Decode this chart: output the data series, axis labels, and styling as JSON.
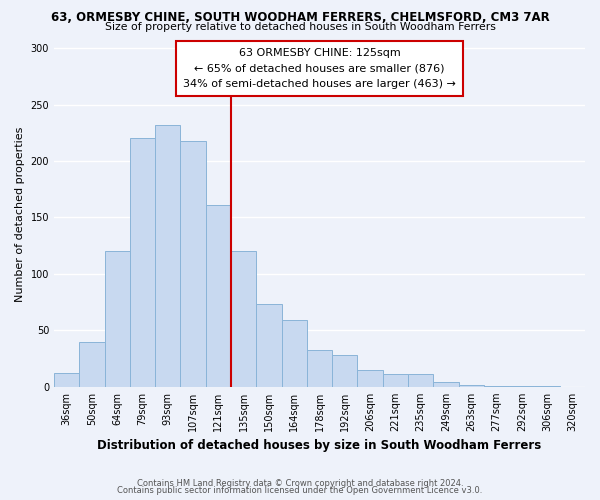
{
  "title1": "63, ORMESBY CHINE, SOUTH WOODHAM FERRERS, CHELMSFORD, CM3 7AR",
  "title2": "Size of property relative to detached houses in South Woodham Ferrers",
  "xlabel": "Distribution of detached houses by size in South Woodham Ferrers",
  "ylabel": "Number of detached properties",
  "categories": [
    "36sqm",
    "50sqm",
    "64sqm",
    "79sqm",
    "93sqm",
    "107sqm",
    "121sqm",
    "135sqm",
    "150sqm",
    "164sqm",
    "178sqm",
    "192sqm",
    "206sqm",
    "221sqm",
    "235sqm",
    "249sqm",
    "263sqm",
    "277sqm",
    "292sqm",
    "306sqm",
    "320sqm"
  ],
  "values": [
    12,
    40,
    120,
    220,
    232,
    218,
    161,
    120,
    73,
    59,
    33,
    28,
    15,
    11,
    11,
    4,
    2,
    1,
    1,
    1,
    0
  ],
  "bar_color": "#c8d9f0",
  "bar_edge_color": "#8ab4d8",
  "vline_color": "#cc0000",
  "annotation_title": "63 ORMESBY CHINE: 125sqm",
  "annotation_line1": "← 65% of detached houses are smaller (876)",
  "annotation_line2": "34% of semi-detached houses are larger (463) →",
  "annotation_box_color": "#ffffff",
  "annotation_box_edge": "#cc0000",
  "ylim": [
    0,
    305
  ],
  "yticks": [
    0,
    50,
    100,
    150,
    200,
    250,
    300
  ],
  "footer1": "Contains HM Land Registry data © Crown copyright and database right 2024.",
  "footer2": "Contains public sector information licensed under the Open Government Licence v3.0.",
  "bg_color": "#eef2fa"
}
